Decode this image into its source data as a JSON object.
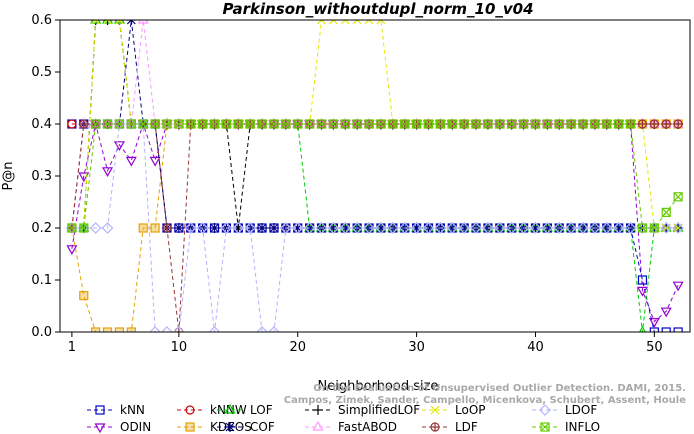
{
  "chart_data": {
    "type": "line",
    "title": "Parkinson_withoutdupl_norm_10_v04",
    "xlabel": "Neighborhood size",
    "ylabel": "P@n",
    "xlim": [
      0,
      53
    ],
    "ylim": [
      0,
      0.6
    ],
    "xticks": [
      1,
      10,
      20,
      30,
      40,
      50
    ],
    "yticks": [
      0.0,
      0.1,
      0.2,
      0.3,
      0.4,
      0.5,
      0.6
    ],
    "grid": false,
    "legend_position": "bottom",
    "citation": [
      "Campos, Zimek, Sander, Campello, Micenkova, Schubert, Assent, Houle",
      "On the Evaluation of Unsupervised Outlier Detection. DAMI, 2015."
    ],
    "x": [
      1,
      2,
      3,
      4,
      5,
      6,
      7,
      8,
      9,
      10,
      11,
      12,
      13,
      14,
      15,
      16,
      17,
      18,
      19,
      20,
      21,
      22,
      23,
      24,
      25,
      26,
      27,
      28,
      29,
      30,
      31,
      32,
      33,
      34,
      35,
      36,
      37,
      38,
      39,
      40,
      41,
      42,
      43,
      44,
      45,
      46,
      47,
      48,
      49,
      50,
      51,
      52
    ],
    "series": [
      {
        "name": "kNN",
        "color": "#0000cc",
        "marker": "square",
        "values": [
          0.4,
          0.4,
          0.4,
          0.4,
          0.4,
          0.4,
          0.4,
          0.4,
          0.2,
          0.2,
          0.2,
          0.2,
          0.2,
          0.2,
          0.2,
          0.2,
          0.2,
          0.2,
          0.2,
          0.2,
          0.2,
          0.2,
          0.2,
          0.2,
          0.2,
          0.2,
          0.2,
          0.2,
          0.2,
          0.2,
          0.2,
          0.2,
          0.2,
          0.2,
          0.2,
          0.2,
          0.2,
          0.2,
          0.2,
          0.2,
          0.2,
          0.2,
          0.2,
          0.2,
          0.2,
          0.2,
          0.2,
          0.2,
          0.1,
          0.0,
          0.0,
          0.0
        ]
      },
      {
        "name": "ODIN",
        "color": "#9400d3",
        "marker": "triangle-down",
        "values": [
          0.16,
          0.3,
          0.4,
          0.31,
          0.36,
          0.33,
          0.4,
          0.33,
          0.4,
          0.4,
          0.4,
          0.4,
          0.4,
          0.4,
          0.4,
          0.4,
          0.4,
          0.4,
          0.4,
          0.4,
          0.4,
          0.4,
          0.4,
          0.4,
          0.4,
          0.4,
          0.4,
          0.4,
          0.4,
          0.4,
          0.4,
          0.4,
          0.4,
          0.4,
          0.4,
          0.4,
          0.4,
          0.4,
          0.4,
          0.4,
          0.4,
          0.4,
          0.4,
          0.4,
          0.4,
          0.4,
          0.4,
          0.4,
          0.08,
          0.02,
          0.04,
          0.09
        ]
      },
      {
        "name": "kNNW",
        "color": "#cc0000",
        "marker": "circle",
        "values": [
          0.4,
          0.4,
          0.4,
          0.4,
          0.4,
          0.4,
          0.4,
          0.4,
          0.4,
          0.4,
          0.4,
          0.4,
          0.4,
          0.4,
          0.4,
          0.4,
          0.4,
          0.4,
          0.4,
          0.4,
          0.4,
          0.4,
          0.4,
          0.4,
          0.4,
          0.4,
          0.4,
          0.4,
          0.4,
          0.4,
          0.4,
          0.4,
          0.4,
          0.4,
          0.4,
          0.4,
          0.4,
          0.4,
          0.4,
          0.4,
          0.4,
          0.4,
          0.4,
          0.4,
          0.4,
          0.4,
          0.4,
          0.4,
          0.4,
          0.4,
          0.4,
          0.4
        ]
      },
      {
        "name": "KDEOS",
        "color": "#e6a100",
        "marker": "square-filled",
        "values": [
          0.2,
          0.07,
          0.0,
          0.0,
          0.0,
          0.0,
          0.2,
          0.2,
          0.4,
          0.4,
          0.4,
          0.4,
          0.4,
          0.4,
          0.4,
          0.4,
          0.4,
          0.4,
          0.4,
          0.4,
          0.4,
          0.4,
          0.4,
          0.4,
          0.4,
          0.4,
          0.4,
          0.4,
          0.4,
          0.4,
          0.4,
          0.4,
          0.4,
          0.4,
          0.4,
          0.4,
          0.4,
          0.4,
          0.4,
          0.4,
          0.4,
          0.4,
          0.4,
          0.4,
          0.4,
          0.4,
          0.4,
          0.4,
          0.4,
          0.4,
          0.4,
          0.4
        ]
      },
      {
        "name": "LOF",
        "color": "#00cc00",
        "marker": "triangle-up",
        "values": [
          0.2,
          0.2,
          0.6,
          0.6,
          0.6,
          0.4,
          0.4,
          0.4,
          0.4,
          0.4,
          0.4,
          0.4,
          0.4,
          0.4,
          0.4,
          0.4,
          0.4,
          0.4,
          0.4,
          0.4,
          0.2,
          0.2,
          0.2,
          0.2,
          0.2,
          0.2,
          0.2,
          0.2,
          0.2,
          0.2,
          0.2,
          0.2,
          0.2,
          0.2,
          0.2,
          0.2,
          0.2,
          0.2,
          0.2,
          0.2,
          0.2,
          0.2,
          0.2,
          0.2,
          0.2,
          0.2,
          0.2,
          0.2,
          0.0,
          0.2,
          0.2,
          0.2
        ]
      },
      {
        "name": "COF",
        "color": "#000080",
        "marker": "asterisk",
        "values": [
          0.2,
          0.4,
          0.4,
          0.4,
          0.4,
          0.6,
          0.4,
          0.4,
          0.2,
          0.2,
          0.2,
          0.2,
          0.2,
          0.2,
          0.2,
          0.2,
          0.2,
          0.2,
          0.2,
          0.2,
          0.2,
          0.2,
          0.2,
          0.2,
          0.2,
          0.2,
          0.2,
          0.2,
          0.2,
          0.2,
          0.2,
          0.2,
          0.2,
          0.2,
          0.2,
          0.2,
          0.2,
          0.2,
          0.2,
          0.2,
          0.2,
          0.2,
          0.2,
          0.2,
          0.2,
          0.2,
          0.2,
          0.2,
          0.2,
          0.2,
          0.2,
          0.2
        ]
      },
      {
        "name": "SimplifiedLOF",
        "color": "#000000",
        "marker": "plus",
        "values": [
          0.2,
          0.2,
          0.6,
          0.6,
          0.6,
          0.4,
          0.4,
          0.4,
          0.4,
          0.4,
          0.4,
          0.4,
          0.4,
          0.4,
          0.2,
          0.4,
          0.4,
          0.4,
          0.4,
          0.4,
          0.4,
          0.4,
          0.4,
          0.4,
          0.4,
          0.4,
          0.4,
          0.4,
          0.4,
          0.4,
          0.4,
          0.4,
          0.4,
          0.4,
          0.4,
          0.4,
          0.4,
          0.4,
          0.4,
          0.4,
          0.4,
          0.4,
          0.4,
          0.4,
          0.4,
          0.4,
          0.4,
          0.4,
          0.4,
          0.4,
          0.4,
          0.4
        ]
      },
      {
        "name": "FastABOD",
        "color": "#ff99ff",
        "marker": "triangle-up",
        "values": [
          0.2,
          0.4,
          0.4,
          0.4,
          0.4,
          0.4,
          0.6,
          0.4,
          0.4,
          0.4,
          0.4,
          0.4,
          0.4,
          0.4,
          0.4,
          0.4,
          0.4,
          0.4,
          0.4,
          0.4,
          0.4,
          0.4,
          0.4,
          0.4,
          0.4,
          0.4,
          0.4,
          0.4,
          0.4,
          0.4,
          0.4,
          0.4,
          0.4,
          0.4,
          0.4,
          0.4,
          0.4,
          0.4,
          0.4,
          0.4,
          0.4,
          0.4,
          0.4,
          0.4,
          0.4,
          0.4,
          0.4,
          0.4,
          0.4,
          0.4,
          0.4,
          0.4
        ]
      },
      {
        "name": "LoOP",
        "color": "#e6e600",
        "marker": "x",
        "values": [
          0.2,
          0.2,
          0.6,
          0.6,
          0.6,
          0.4,
          0.4,
          0.4,
          0.4,
          0.4,
          0.4,
          0.4,
          0.4,
          0.4,
          0.4,
          0.4,
          0.4,
          0.4,
          0.4,
          0.4,
          0.4,
          0.6,
          0.6,
          0.6,
          0.6,
          0.6,
          0.6,
          0.4,
          0.4,
          0.4,
          0.4,
          0.4,
          0.4,
          0.4,
          0.4,
          0.4,
          0.4,
          0.4,
          0.4,
          0.4,
          0.4,
          0.4,
          0.4,
          0.4,
          0.4,
          0.4,
          0.4,
          0.4,
          0.4,
          0.2,
          0.2,
          0.2
        ]
      },
      {
        "name": "LDF",
        "color": "#993333",
        "marker": "circle-plus",
        "values": [
          0.2,
          0.4,
          0.4,
          0.4,
          0.4,
          0.4,
          0.4,
          0.4,
          0.2,
          0.0,
          0.4,
          0.4,
          0.4,
          0.4,
          0.4,
          0.4,
          0.4,
          0.4,
          0.4,
          0.4,
          0.4,
          0.4,
          0.4,
          0.4,
          0.4,
          0.4,
          0.4,
          0.4,
          0.4,
          0.4,
          0.4,
          0.4,
          0.4,
          0.4,
          0.4,
          0.4,
          0.4,
          0.4,
          0.4,
          0.4,
          0.4,
          0.4,
          0.4,
          0.4,
          0.4,
          0.4,
          0.4,
          0.4,
          0.4,
          0.4,
          0.4,
          0.4
        ]
      },
      {
        "name": "LDOF",
        "color": "#b3b3ff",
        "marker": "diamond",
        "values": [
          0.2,
          0.2,
          0.2,
          0.2,
          0.4,
          0.4,
          0.4,
          0.0,
          0.0,
          0.0,
          0.2,
          0.2,
          0.0,
          0.2,
          0.2,
          0.2,
          0.0,
          0.0,
          0.2,
          0.2,
          0.2,
          0.2,
          0.2,
          0.2,
          0.2,
          0.2,
          0.2,
          0.2,
          0.2,
          0.2,
          0.2,
          0.2,
          0.2,
          0.2,
          0.2,
          0.2,
          0.2,
          0.2,
          0.2,
          0.2,
          0.2,
          0.2,
          0.2,
          0.2,
          0.2,
          0.2,
          0.2,
          0.2,
          0.2,
          0.2,
          0.2,
          0.2
        ]
      },
      {
        "name": "INFLO",
        "color": "#66cc00",
        "marker": "square-x",
        "values": [
          0.2,
          0.2,
          0.4,
          0.4,
          0.4,
          0.4,
          0.4,
          0.4,
          0.4,
          0.4,
          0.4,
          0.4,
          0.4,
          0.4,
          0.4,
          0.4,
          0.4,
          0.4,
          0.4,
          0.4,
          0.4,
          0.4,
          0.4,
          0.4,
          0.4,
          0.4,
          0.4,
          0.4,
          0.4,
          0.4,
          0.4,
          0.4,
          0.4,
          0.4,
          0.4,
          0.4,
          0.4,
          0.4,
          0.4,
          0.4,
          0.4,
          0.4,
          0.4,
          0.4,
          0.4,
          0.4,
          0.4,
          0.4,
          0.2,
          0.2,
          0.23,
          0.26
        ]
      }
    ],
    "legend_order": [
      "kNN",
      "kNNW",
      "LOF",
      "SimplifiedLOF",
      "LoOP",
      "LDOF",
      "ODIN",
      "KDEOS",
      "COF",
      "FastABOD",
      "LDF",
      "INFLO"
    ]
  }
}
